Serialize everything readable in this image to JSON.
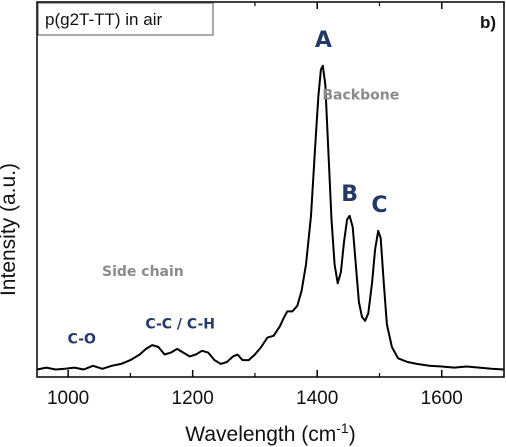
{
  "chart_data": {
    "type": "line",
    "title": "p(g2T-TT) in air",
    "panel_label": "b)",
    "xlabel": "Wavelength (cm",
    "xlabel_sup": "-1",
    "xlabel_end": ")",
    "ylabel": "Intensity (a.u.)",
    "xlim": [
      950,
      1700
    ],
    "ylim": [
      0,
      1.0
    ],
    "x_ticks": [
      1000,
      1200,
      1400,
      1600
    ],
    "y_ticks_visible": false,
    "grid": false,
    "series": [
      {
        "color": "#000000",
        "points": [
          [
            950,
            0.02
          ],
          [
            965,
            0.025
          ],
          [
            980,
            0.02
          ],
          [
            995,
            0.022
          ],
          [
            1010,
            0.025
          ],
          [
            1025,
            0.02
          ],
          [
            1040,
            0.03
          ],
          [
            1055,
            0.022
          ],
          [
            1070,
            0.03
          ],
          [
            1085,
            0.035
          ],
          [
            1100,
            0.045
          ],
          [
            1115,
            0.06
          ],
          [
            1125,
            0.075
          ],
          [
            1135,
            0.085
          ],
          [
            1145,
            0.08
          ],
          [
            1155,
            0.06
          ],
          [
            1165,
            0.065
          ],
          [
            1175,
            0.075
          ],
          [
            1185,
            0.065
          ],
          [
            1195,
            0.055
          ],
          [
            1205,
            0.06
          ],
          [
            1215,
            0.07
          ],
          [
            1225,
            0.065
          ],
          [
            1235,
            0.045
          ],
          [
            1245,
            0.035
          ],
          [
            1255,
            0.04
          ],
          [
            1265,
            0.055
          ],
          [
            1272,
            0.06
          ],
          [
            1280,
            0.045
          ],
          [
            1290,
            0.045
          ],
          [
            1300,
            0.06
          ],
          [
            1310,
            0.08
          ],
          [
            1320,
            0.105
          ],
          [
            1330,
            0.11
          ],
          [
            1340,
            0.135
          ],
          [
            1347,
            0.16
          ],
          [
            1352,
            0.175
          ],
          [
            1360,
            0.175
          ],
          [
            1368,
            0.19
          ],
          [
            1375,
            0.23
          ],
          [
            1382,
            0.3
          ],
          [
            1390,
            0.43
          ],
          [
            1397,
            0.62
          ],
          [
            1402,
            0.75
          ],
          [
            1406,
            0.82
          ],
          [
            1409,
            0.83
          ],
          [
            1413,
            0.78
          ],
          [
            1418,
            0.6
          ],
          [
            1423,
            0.42
          ],
          [
            1428,
            0.3
          ],
          [
            1433,
            0.25
          ],
          [
            1438,
            0.28
          ],
          [
            1443,
            0.36
          ],
          [
            1448,
            0.42
          ],
          [
            1452,
            0.43
          ],
          [
            1457,
            0.4
          ],
          [
            1462,
            0.3
          ],
          [
            1467,
            0.2
          ],
          [
            1472,
            0.16
          ],
          [
            1477,
            0.15
          ],
          [
            1482,
            0.17
          ],
          [
            1488,
            0.25
          ],
          [
            1493,
            0.34
          ],
          [
            1498,
            0.39
          ],
          [
            1502,
            0.37
          ],
          [
            1507,
            0.25
          ],
          [
            1512,
            0.14
          ],
          [
            1520,
            0.08
          ],
          [
            1530,
            0.05
          ],
          [
            1545,
            0.04
          ],
          [
            1560,
            0.035
          ],
          [
            1580,
            0.03
          ],
          [
            1600,
            0.028
          ],
          [
            1620,
            0.025
          ],
          [
            1640,
            0.028
          ],
          [
            1660,
            0.025
          ],
          [
            1680,
            0.022
          ],
          [
            1700,
            0.02
          ]
        ]
      }
    ],
    "annotations": [
      {
        "text": "A",
        "x": 1410,
        "y": 0.88,
        "style": "peak"
      },
      {
        "text": "B",
        "x": 1452,
        "y": 0.47,
        "style": "peak"
      },
      {
        "text": "C",
        "x": 1500,
        "y": 0.44,
        "style": "peak"
      },
      {
        "text": "Backbone",
        "x": 1470,
        "y": 0.74,
        "style": "gray"
      },
      {
        "text": "Side chain",
        "x": 1120,
        "y": 0.27,
        "style": "gray"
      },
      {
        "text": "C-O",
        "x": 1022,
        "y": 0.09,
        "style": "blue"
      },
      {
        "text": "C-C / C-H",
        "x": 1180,
        "y": 0.13,
        "style": "blue"
      }
    ]
  }
}
